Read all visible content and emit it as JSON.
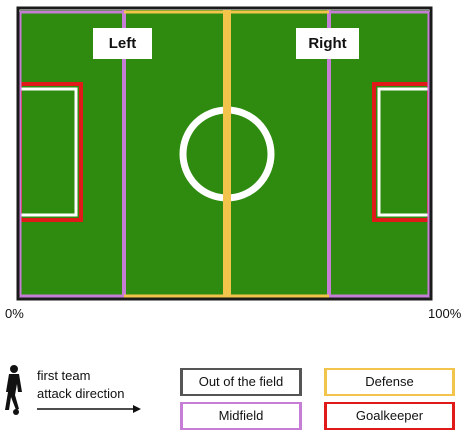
{
  "field": {
    "grass_color": "#2e8b0f",
    "line_color": "#ffffff",
    "out_of_field_color": "#555555",
    "midfield_color": "#c67dd6",
    "defense_color": "#f2c44c",
    "goalkeeper_color": "#e01919",
    "left_label": "Left",
    "right_label": "Right",
    "start_pct": "0%",
    "end_pct": "100%"
  },
  "direction": {
    "line1": "first team",
    "line2": "attack direction",
    "icon": "player-running-icon"
  },
  "legend": [
    {
      "label": "Out of the field",
      "color": "#555555"
    },
    {
      "label": "Defense",
      "color": "#f2c44c"
    },
    {
      "label": "Midfield",
      "color": "#c67dd6"
    },
    {
      "label": "Goalkeeper",
      "color": "#e01919"
    }
  ]
}
